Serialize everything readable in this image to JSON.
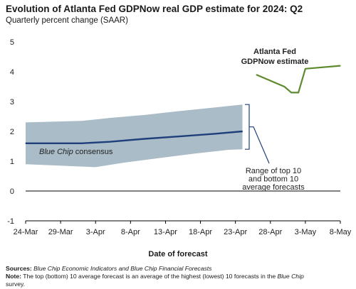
{
  "chart_data": {
    "type": "line",
    "title": "Evolution of Atlanta Fed GDPNow real GDP estimate for 2024: Q2",
    "subtitle": "Quarterly percent change (SAAR)",
    "xlabel": "Date of forecast",
    "ylabel": "",
    "ylim": [
      -1,
      5
    ],
    "yticks": [
      "-1",
      "0",
      "1",
      "2",
      "3",
      "4",
      "5"
    ],
    "xticks": [
      "24-Mar",
      "29-Mar",
      "3-Apr",
      "8-Apr",
      "13-Apr",
      "18-Apr",
      "23-Apr",
      "28-Apr",
      "3-May",
      "8-May"
    ],
    "x_start": "2024-03-24",
    "x_end": "2024-05-08",
    "grid": false,
    "series": [
      {
        "name": "Atlanta Fed GDPNow estimate",
        "color": "#5e8a2f",
        "points": [
          {
            "x": "2024-04-26",
            "y": 3.9
          },
          {
            "x": "2024-04-30",
            "y": 3.5
          },
          {
            "x": "2024-05-01",
            "y": 3.3
          },
          {
            "x": "2024-05-02",
            "y": 3.3
          },
          {
            "x": "2024-05-03",
            "y": 4.1
          },
          {
            "x": "2024-05-08",
            "y": 4.2
          }
        ]
      },
      {
        "name": "Blue Chip consensus",
        "color": "#1f3f7a",
        "points": [
          {
            "x": "2024-03-24",
            "y": 1.6
          },
          {
            "x": "2024-04-01",
            "y": 1.6
          },
          {
            "x": "2024-04-05",
            "y": 1.65
          },
          {
            "x": "2024-04-10",
            "y": 1.75
          },
          {
            "x": "2024-04-15",
            "y": 1.83
          },
          {
            "x": "2024-04-20",
            "y": 1.92
          },
          {
            "x": "2024-04-24",
            "y": 2.0
          }
        ]
      }
    ],
    "band": {
      "color": "#a9bcc8",
      "upper": [
        {
          "x": "2024-03-24",
          "y": 2.3
        },
        {
          "x": "2024-04-01",
          "y": 2.35
        },
        {
          "x": "2024-04-05",
          "y": 2.45
        },
        {
          "x": "2024-04-10",
          "y": 2.55
        },
        {
          "x": "2024-04-15",
          "y": 2.68
        },
        {
          "x": "2024-04-20",
          "y": 2.8
        },
        {
          "x": "2024-04-24",
          "y": 2.9
        }
      ],
      "lower": [
        {
          "x": "2024-03-24",
          "y": 0.9
        },
        {
          "x": "2024-04-03",
          "y": 0.8
        },
        {
          "x": "2024-04-07",
          "y": 0.95
        },
        {
          "x": "2024-04-12",
          "y": 1.1
        },
        {
          "x": "2024-04-17",
          "y": 1.25
        },
        {
          "x": "2024-04-22",
          "y": 1.38
        },
        {
          "x": "2024-04-24",
          "y": 1.4
        }
      ]
    },
    "annotations": {
      "gdpnow_label": [
        "Atlanta Fed",
        "GDPNow estimate"
      ],
      "bluechip_italic": "Blue Chip",
      "bluechip_rest": " consensus",
      "range_label": [
        "Range of top 10",
        "and bottom 10",
        "average forecasts"
      ]
    }
  },
  "footnotes": {
    "sources_label": "Sources:",
    "sources_text": "Blue Chip Economic Indicators and Blue Chip Financial Forecasts",
    "note_label": "Note:",
    "note_text_1": " The top (bottom) 10 average forecast is an average of the highest (lowest) 10 forecasts in the ",
    "note_italic": "Blue Chip",
    "note_text_2": "survey."
  }
}
